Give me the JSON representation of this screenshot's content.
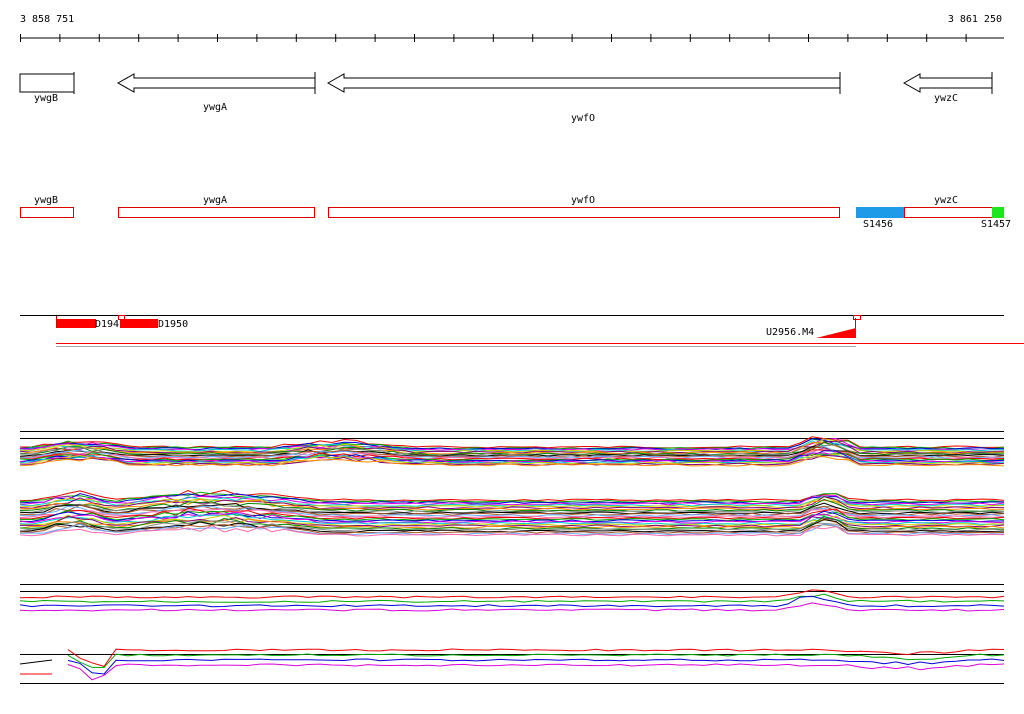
{
  "ruler": {
    "start": "3 858 751",
    "end": "3 861 250"
  },
  "genes": [
    "ywgB",
    "ywgA",
    "ywfO",
    "ywzC"
  ],
  "features": [
    "ywgB",
    "ywgA",
    "ywfO",
    "ywzC"
  ],
  "sites": [
    "S1456",
    "S1457"
  ],
  "probes": [
    "D194",
    "D1950",
    "U2956.M4"
  ]
}
